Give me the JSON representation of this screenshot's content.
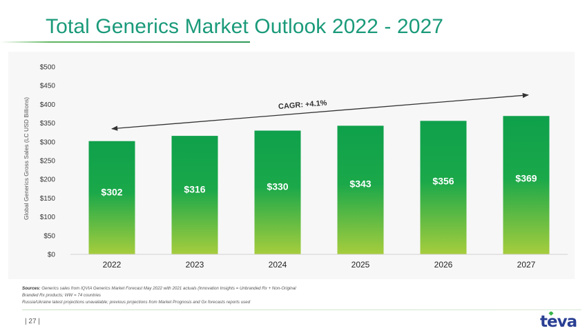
{
  "header": {
    "title": "Total Generics Market Outlook 2022 - 2027"
  },
  "colors": {
    "title": "#1a9a7a",
    "bar_top": "#0fa04b",
    "bar_bottom": "#a6cd3d",
    "logo_blue": "#2a3f93",
    "logo_green": "#39b54a"
  },
  "chart_data": {
    "type": "bar",
    "categories": [
      "2022",
      "2023",
      "2024",
      "2025",
      "2026",
      "2027"
    ],
    "values": [
      302,
      316,
      330,
      343,
      356,
      369
    ],
    "value_labels": [
      "$302",
      "$316",
      "$330",
      "$343",
      "$356",
      "$369"
    ],
    "ylabel": "Global Generics Gross Sales (LC USD Billions)",
    "ylim": [
      0,
      500
    ],
    "yticks": [
      0,
      50,
      100,
      150,
      200,
      250,
      300,
      350,
      400,
      450,
      500
    ],
    "ytick_labels": [
      "$0",
      "$50",
      "$100",
      "$150",
      "$200",
      "$250",
      "$300",
      "$350",
      "$400",
      "$450",
      "$500"
    ],
    "grid": false,
    "annotation": {
      "text": "CAGR: +4.1%",
      "arrow": "double-headed",
      "from": {
        "x": "2022",
        "y": 335
      },
      "to": {
        "x": "2027",
        "y": 425
      }
    }
  },
  "footer": {
    "sources_label": "Sources:",
    "sources_line1": " Generics sales from IQVIA Generics Market Forecast May 2022 with 2021 actuals (Innovation Insights = Unbranded Rx + Non-Original",
    "sources_line2": "Branded Rx products; WW = 74 countries",
    "sources_line3": "Russia/Ukraine latest projections unavailable; previous projections from Market Prognosis and Gx forecasts reports used",
    "page_number": "| 27 |",
    "logo_text": "teva"
  }
}
